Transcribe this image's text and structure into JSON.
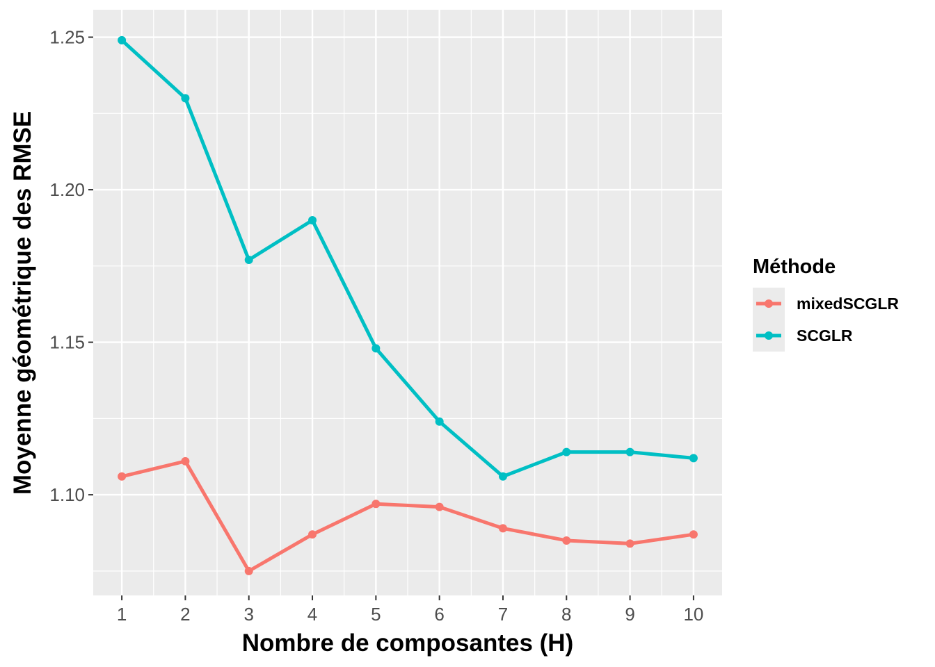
{
  "chart_data": {
    "type": "line",
    "xlabel": "Nombre de composantes (H)",
    "ylabel": "Moyenne géométrique des RMSE",
    "x": [
      1,
      2,
      3,
      4,
      5,
      6,
      7,
      8,
      9,
      10
    ],
    "x_tick_labels": [
      "1",
      "2",
      "3",
      "4",
      "5",
      "6",
      "7",
      "8",
      "9",
      "10"
    ],
    "y_tick_labels": [
      "1.10",
      "1.15",
      "1.20",
      "1.25"
    ],
    "y_ticks": [
      1.1,
      1.15,
      1.2,
      1.25
    ],
    "xlim": [
      0.55,
      10.45
    ],
    "ylim": [
      1.067,
      1.259
    ],
    "grid": true,
    "legend_position": "right",
    "legend_title": "Méthode",
    "background_color": "#ebebeb",
    "series": [
      {
        "name": "mixedSCGLR",
        "color": "#f8766d",
        "values": [
          1.106,
          1.111,
          1.075,
          1.087,
          1.097,
          1.096,
          1.089,
          1.085,
          1.084,
          1.087
        ]
      },
      {
        "name": "SCGLR",
        "color": "#00bfc4",
        "values": [
          1.249,
          1.23,
          1.177,
          1.19,
          1.148,
          1.124,
          1.106,
          1.114,
          1.114,
          1.112
        ]
      }
    ]
  }
}
